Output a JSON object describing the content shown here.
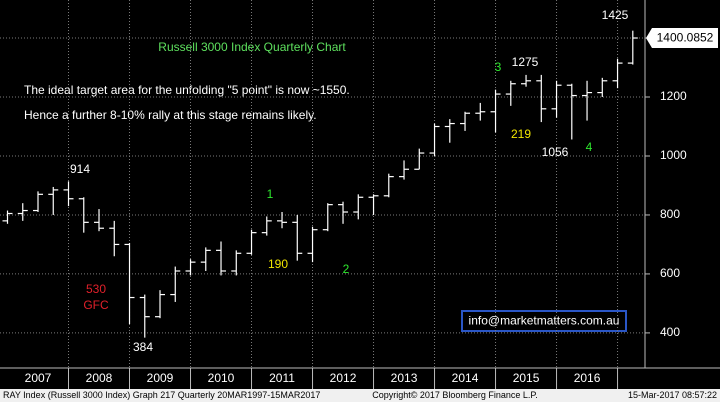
{
  "chart_data": {
    "type": "ohlc",
    "title": "Russell 3000 Index Quarterly Chart",
    "notes": [
      "The ideal target area for the unfolding \"5 point\" is now ~1550.",
      "Hence  a further 8-10% rally at this stage remains likely."
    ],
    "annotations": [
      {
        "text": "1425",
        "color": "#ffffff"
      },
      {
        "text": "914",
        "color": "#ffffff"
      },
      {
        "text": "530",
        "color": "#e0202a"
      },
      {
        "text": "GFC",
        "color": "#e0202a"
      },
      {
        "text": "384",
        "color": "#ffffff"
      },
      {
        "text": "1275",
        "color": "#ffffff"
      },
      {
        "text": "219",
        "color": "#f2e600"
      },
      {
        "text": "1056",
        "color": "#ffffff"
      },
      {
        "text": "190",
        "color": "#f2e600"
      },
      {
        "text": "1",
        "color": "#2ee82e"
      },
      {
        "text": "2",
        "color": "#2ee82e"
      },
      {
        "text": "3",
        "color": "#2ee82e"
      },
      {
        "text": "4",
        "color": "#2ee82e"
      }
    ],
    "contact": "info@marketmatters.com.au",
    "footer": {
      "left": "RAY Index (Russell 3000 Index) Graph 217  Quarterly 20MAR1997-15MAR2017",
      "center": "Copyright© 2017 Bloomberg Finance L.P.",
      "right": "15-Mar-2017 08:57:22"
    },
    "x": [
      2007.0,
      2007.25,
      2007.5,
      2007.75,
      2008.0,
      2008.25,
      2008.5,
      2008.75,
      2009.0,
      2009.25,
      2009.5,
      2009.75,
      2010.0,
      2010.25,
      2010.5,
      2010.75,
      2011.0,
      2011.25,
      2011.5,
      2011.75,
      2012.0,
      2012.25,
      2012.5,
      2012.75,
      2013.0,
      2013.25,
      2013.5,
      2013.75,
      2014.0,
      2014.25,
      2014.5,
      2014.75,
      2015.0,
      2015.25,
      2015.5,
      2015.75,
      2016.0,
      2016.25,
      2016.5,
      2016.75,
      2017.0,
      2017.25
    ],
    "series": [
      {
        "name": "RAY Index",
        "color": "#ffffff",
        "open": [
          780,
          805,
          815,
          870,
          885,
          855,
          775,
          755,
          700,
          520,
          455,
          530,
          610,
          640,
          680,
          610,
          670,
          740,
          780,
          775,
          670,
          750,
          835,
          810,
          860,
          865,
          930,
          955,
          1010,
          1100,
          1110,
          1145,
          1150,
          1210,
          1245,
          1255,
          1160,
          1240,
          1205,
          1215,
          1255,
          1315
        ],
        "high": [
          815,
          840,
          880,
          895,
          914,
          860,
          820,
          780,
          705,
          530,
          545,
          625,
          650,
          690,
          710,
          680,
          750,
          795,
          810,
          800,
          760,
          840,
          845,
          870,
          870,
          940,
          985,
          1025,
          1110,
          1125,
          1150,
          1180,
          1225,
          1255,
          1275,
          1275,
          1255,
          1245,
          1255,
          1265,
          1330,
          1425
        ],
        "low": [
          770,
          780,
          810,
          800,
          830,
          740,
          745,
          660,
          430,
          384,
          450,
          505,
          595,
          610,
          595,
          595,
          665,
          730,
          755,
          645,
          640,
          745,
          770,
          785,
          800,
          860,
          920,
          955,
          1000,
          1045,
          1085,
          1120,
          1080,
          1170,
          1235,
          1115,
          1130,
          1056,
          1120,
          1200,
          1230,
          1310
        ],
        "close": [
          805,
          815,
          870,
          885,
          855,
          775,
          755,
          700,
          520,
          455,
          530,
          610,
          640,
          680,
          610,
          670,
          740,
          780,
          775,
          670,
          750,
          835,
          810,
          860,
          865,
          930,
          955,
          1010,
          1100,
          1110,
          1145,
          1150,
          1210,
          1245,
          1255,
          1160,
          1240,
          1205,
          1215,
          1255,
          1315,
          1400.0852
        ]
      }
    ],
    "xlim": [
      2006.877,
      2017.45
    ],
    "xticks": [
      {
        "value": 2007.5,
        "label": "2007"
      },
      {
        "value": 2008.5,
        "label": "2008"
      },
      {
        "value": 2009.5,
        "label": "2009"
      },
      {
        "value": 2010.5,
        "label": "2010"
      },
      {
        "value": 2011.5,
        "label": "2011"
      },
      {
        "value": 2012.5,
        "label": "2012"
      },
      {
        "value": 2013.5,
        "label": "2013"
      },
      {
        "value": 2014.5,
        "label": "2014"
      },
      {
        "value": 2015.5,
        "label": "2015"
      },
      {
        "value": 2016.5,
        "label": "2016"
      }
    ],
    "ylim": [
      281,
      1529
    ],
    "yticks": [
      400,
      600,
      800,
      1000,
      1200,
      1400
    ],
    "grid": true
  }
}
